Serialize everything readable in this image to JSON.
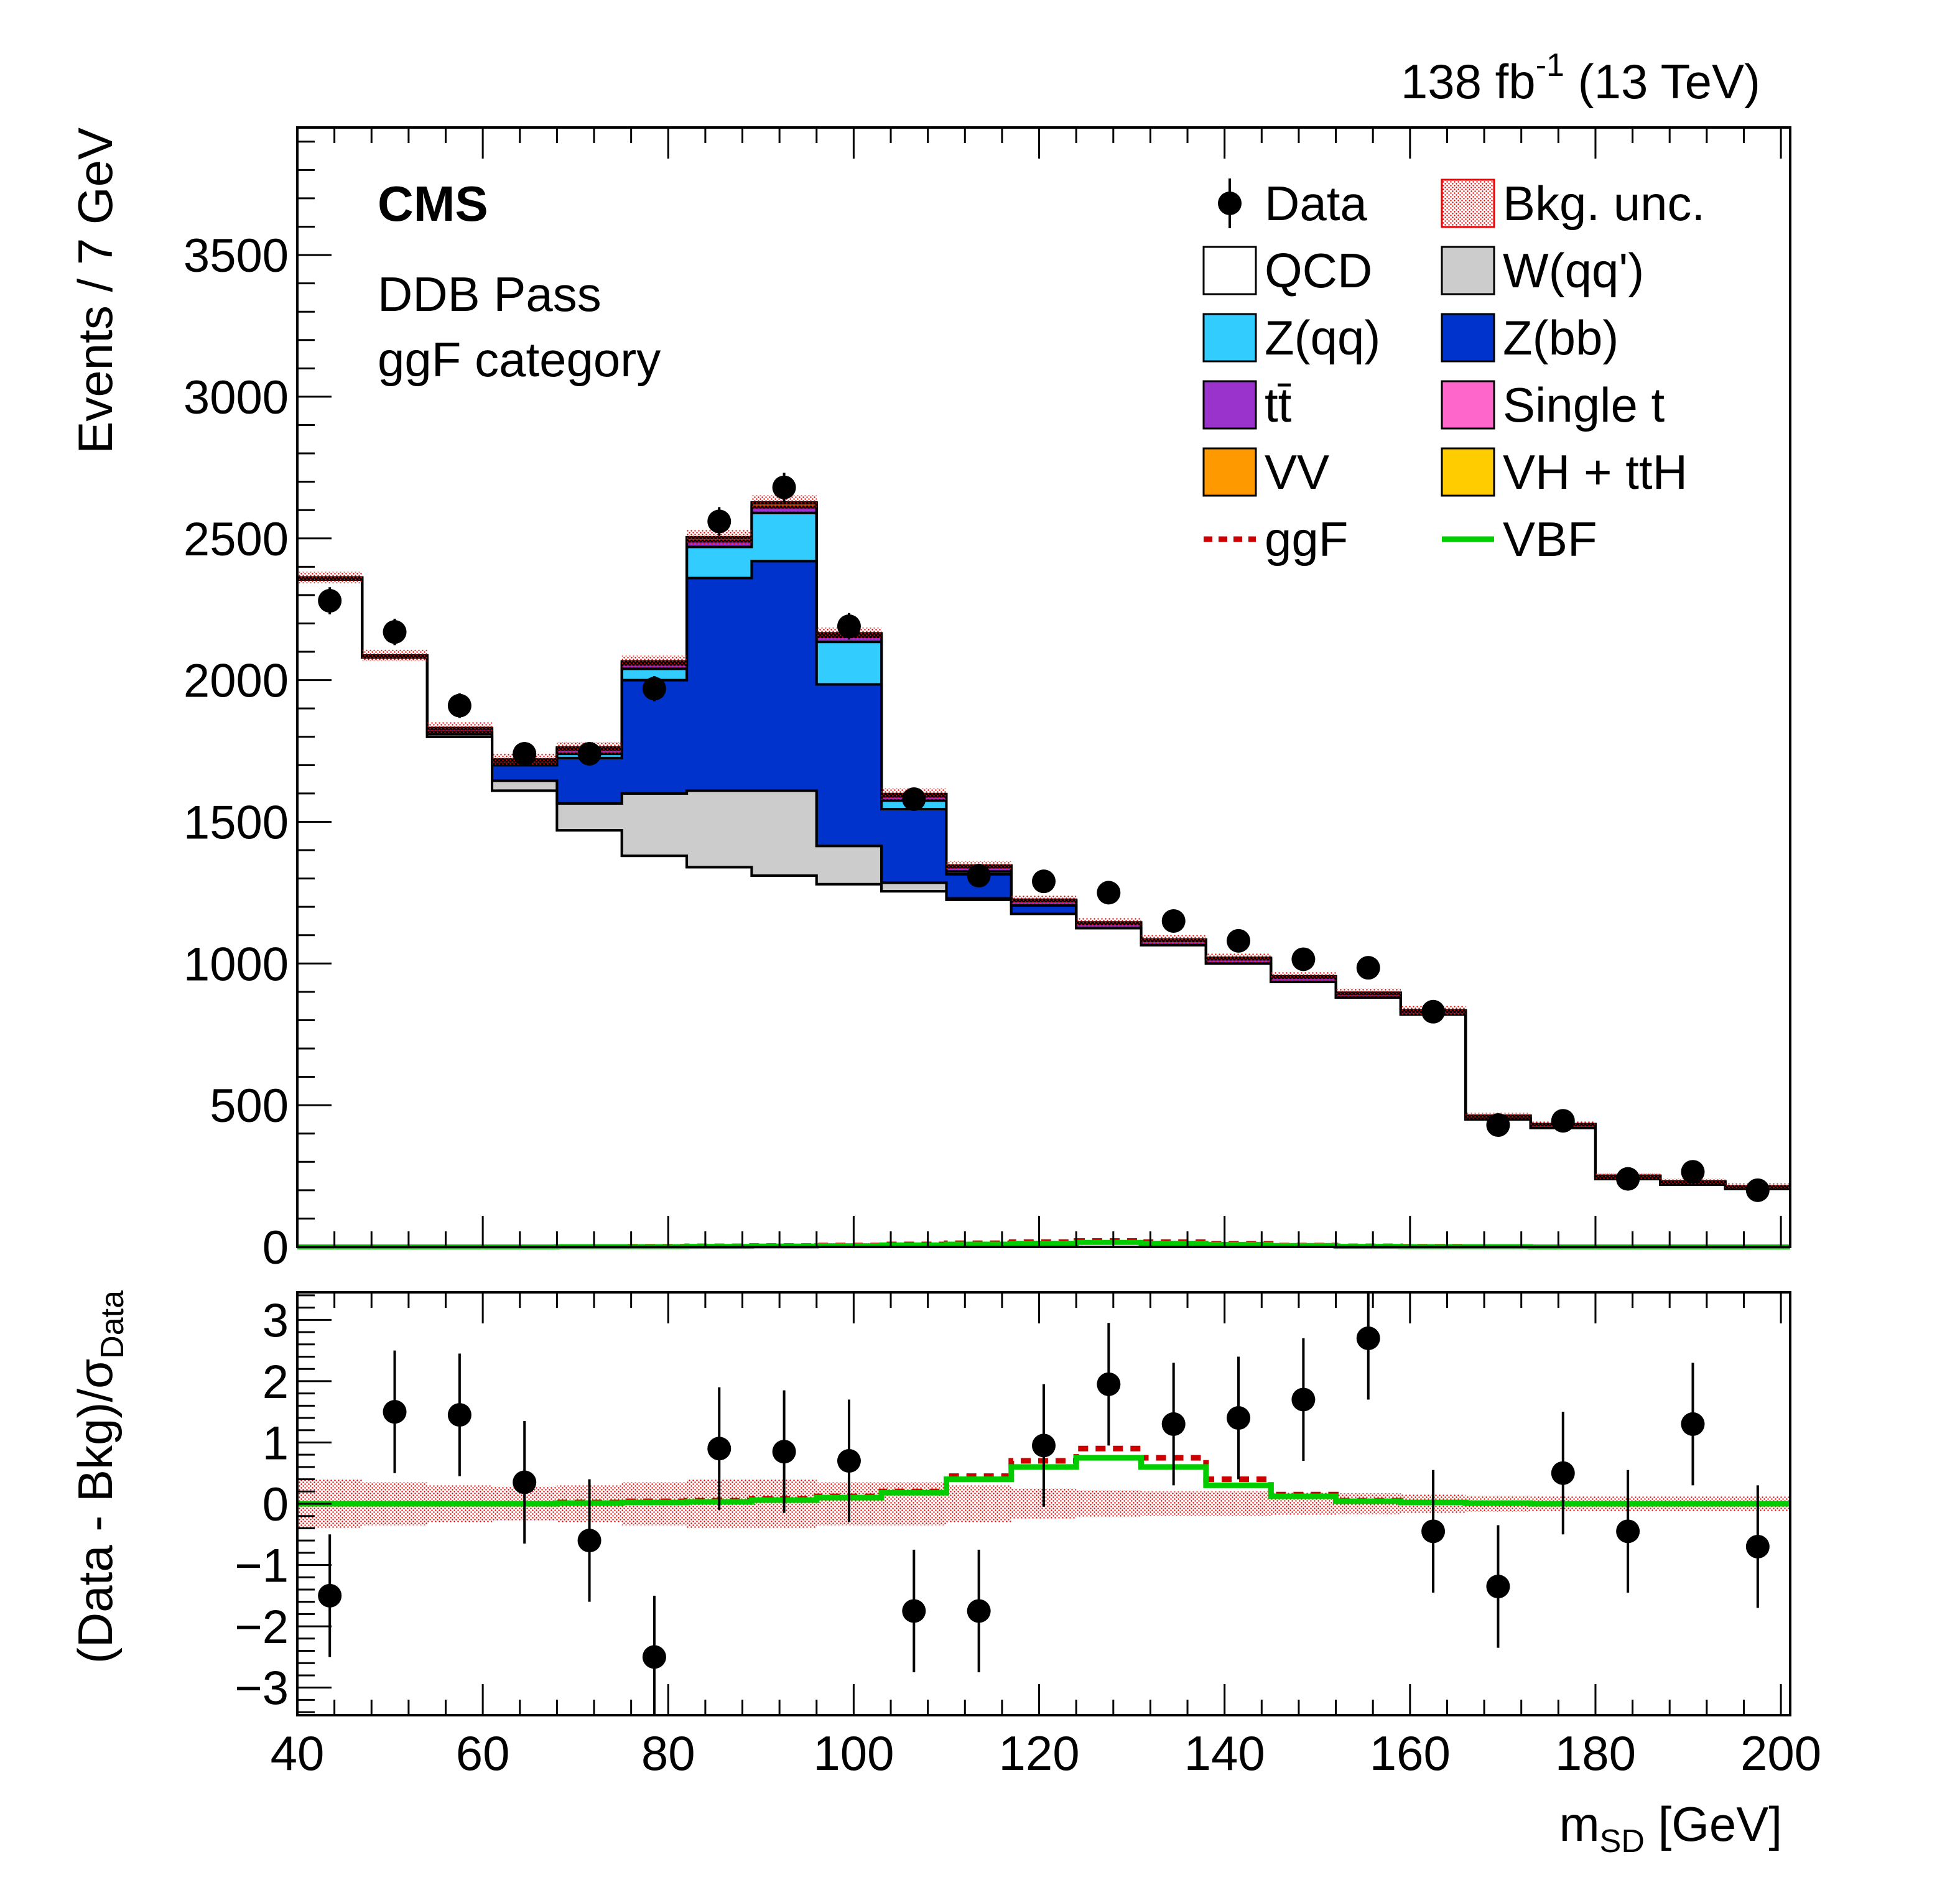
{
  "lumi": {
    "value": "138 fb",
    "sup": "-1",
    "energy": "(13 TeV)"
  },
  "cms_label": "CMS",
  "region": [
    "DDB Pass",
    "ggF category"
  ],
  "chart_data": [
    {
      "type": "stacked-histogram",
      "ylabel": "Events / 7 GeV",
      "ylim": [
        0,
        3950
      ],
      "xlim": [
        40,
        201
      ],
      "yticks": [
        "0",
        "500",
        "1000",
        "1500",
        "2000",
        "2500",
        "3000",
        "3500"
      ],
      "bin_edges": [
        40,
        47,
        54,
        61,
        68,
        75,
        82,
        89,
        96,
        103,
        110,
        117,
        124,
        131,
        138,
        145,
        152,
        159,
        166,
        173,
        180,
        187,
        194,
        201
      ],
      "series": [
        {
          "name": "QCD",
          "color": "#ffffff",
          "values": [
            2355,
            2080,
            1800,
            1610,
            1470,
            1380,
            1340,
            1310,
            1280,
            1255,
            1225,
            1175,
            1125,
            1065,
            1000,
            935,
            880,
            820,
            450,
            420,
            240,
            220,
            205
          ]
        },
        {
          "name": "W(qq')",
          "color": "#cccccc",
          "values": [
            0,
            0,
            10,
            35,
            95,
            220,
            270,
            300,
            135,
            30,
            5,
            0,
            0,
            0,
            0,
            0,
            0,
            0,
            0,
            0,
            0,
            0,
            0
          ]
        },
        {
          "name": "Z(bb)",
          "color": "#0033cc",
          "values": [
            0,
            0,
            5,
            55,
            160,
            400,
            750,
            810,
            570,
            260,
            85,
            30,
            0,
            0,
            0,
            0,
            0,
            0,
            0,
            0,
            0,
            0,
            0
          ]
        },
        {
          "name": "Z(qq)",
          "color": "#33ccff",
          "values": [
            0,
            0,
            2,
            5,
            15,
            40,
            110,
            170,
            150,
            30,
            10,
            0,
            0,
            0,
            0,
            0,
            0,
            0,
            0,
            0,
            0,
            0,
            0
          ]
        },
        {
          "name": "tt̄",
          "color": "#9933cc",
          "values": [
            5,
            5,
            10,
            10,
            15,
            15,
            20,
            20,
            18,
            15,
            15,
            15,
            15,
            15,
            15,
            15,
            12,
            10,
            10,
            10,
            8,
            8,
            6
          ]
        },
        {
          "name": "Single t",
          "color": "#ff66cc",
          "values": [
            2,
            2,
            2,
            2,
            2,
            2,
            2,
            2,
            2,
            2,
            2,
            2,
            2,
            2,
            2,
            2,
            2,
            2,
            2,
            2,
            2,
            2,
            2
          ]
        },
        {
          "name": "VV",
          "color": "#ff9900",
          "values": [
            0,
            0,
            2,
            3,
            5,
            8,
            10,
            12,
            8,
            5,
            3,
            2,
            2,
            2,
            2,
            2,
            2,
            2,
            1,
            1,
            1,
            1,
            1
          ]
        },
        {
          "name": "VH + ttH",
          "color": "#ffcc00",
          "values": [
            0,
            0,
            0,
            0,
            0,
            1,
            2,
            3,
            2,
            1,
            1,
            1,
            1,
            1,
            1,
            1,
            1,
            1,
            0,
            0,
            0,
            0,
            0
          ]
        }
      ],
      "bkg_unc": [
        20,
        20,
        20,
        20,
        20,
        20,
        25,
        25,
        20,
        20,
        15,
        15,
        15,
        15,
        15,
        15,
        15,
        15,
        10,
        10,
        10,
        10,
        10
      ],
      "signals": [
        {
          "name": "ggF",
          "color": "#cc0000",
          "style": "dashed",
          "values": [
            0,
            0,
            0,
            0,
            1,
            2,
            3,
            4,
            6,
            10,
            14,
            18,
            22,
            18,
            12,
            6,
            3,
            2,
            1,
            0,
            0,
            0,
            0
          ]
        },
        {
          "name": "VBF",
          "color": "#00cc00",
          "style": "solid",
          "values": [
            0,
            0,
            0,
            0,
            1,
            1,
            2,
            3,
            4,
            7,
            10,
            13,
            16,
            13,
            9,
            5,
            2,
            1,
            1,
            0,
            0,
            0,
            0
          ]
        }
      ],
      "data": {
        "name": "Data",
        "x": [
          43.5,
          50.5,
          57.5,
          64.5,
          71.5,
          78.5,
          85.5,
          92.5,
          99.5,
          106.5,
          113.5,
          120.5,
          127.5,
          134.5,
          141.5,
          148.5,
          155.5,
          162.5,
          169.5,
          176.5,
          183.5,
          190.5,
          197.5
        ],
        "y": [
          2280,
          2170,
          1910,
          1740,
          1740,
          1970,
          2560,
          2680,
          2190,
          1580,
          1310,
          1290,
          1250,
          1150,
          1080,
          1015,
          985,
          830,
          430,
          445,
          240,
          265,
          200
        ]
      },
      "legend": {
        "placement": "top-right",
        "entries": [
          {
            "label": "Data",
            "kind": "marker"
          },
          {
            "label": "Bkg. unc.",
            "kind": "hatch",
            "color": "#ee0000"
          },
          {
            "label": "QCD",
            "kind": "box",
            "color": "#ffffff"
          },
          {
            "label": "W(qq')",
            "kind": "box",
            "color": "#cccccc"
          },
          {
            "label": "Z(qq)",
            "kind": "box",
            "color": "#33ccff"
          },
          {
            "label": "Z(bb)",
            "kind": "box",
            "color": "#0033cc"
          },
          {
            "label": "tt̄",
            "kind": "box",
            "color": "#9933cc"
          },
          {
            "label": "Single t",
            "kind": "box",
            "color": "#ff66cc"
          },
          {
            "label": "VV",
            "kind": "box",
            "color": "#ff9900"
          },
          {
            "label": "VH + ttH",
            "kind": "box",
            "color": "#ffcc00"
          },
          {
            "label": "ggF",
            "kind": "dashed",
            "color": "#cc0000"
          },
          {
            "label": "VBF",
            "kind": "line",
            "color": "#00cc00"
          }
        ]
      }
    },
    {
      "type": "scatter-with-errors",
      "ylabel": "(Data - Bkg)/σ",
      "ylabel_sub": "Data",
      "ylim": [
        -3.45,
        3.45
      ],
      "xlim": [
        40,
        201
      ],
      "yticks": [
        "−3",
        "−2",
        "−1",
        "0",
        "1",
        "2",
        "3"
      ],
      "xticks": [
        "40",
        "60",
        "80",
        "100",
        "120",
        "140",
        "160",
        "180",
        "200"
      ],
      "xlabel": "m",
      "xlabel_sub": "SD",
      "xlabel_unit": "[GeV]",
      "x": [
        43.5,
        50.5,
        57.5,
        64.5,
        71.5,
        78.5,
        85.5,
        92.5,
        99.5,
        106.5,
        113.5,
        120.5,
        127.5,
        134.5,
        141.5,
        148.5,
        155.5,
        162.5,
        169.5,
        176.5,
        183.5,
        190.5,
        197.5
      ],
      "y": [
        -1.5,
        1.5,
        1.45,
        0.35,
        -0.6,
        -2.5,
        0.9,
        0.85,
        0.7,
        -1.75,
        -1.75,
        0.95,
        1.95,
        1.3,
        1.4,
        1.7,
        2.7,
        -0.45,
        -1.35,
        0.5,
        -0.45,
        1.3,
        -0.7
      ],
      "yerr": 1.0,
      "unc_band": [
        0.4,
        0.35,
        0.3,
        0.28,
        0.3,
        0.35,
        0.4,
        0.4,
        0.35,
        0.35,
        0.3,
        0.25,
        0.22,
        0.2,
        0.2,
        0.18,
        0.17,
        0.15,
        0.13,
        0.12,
        0.12,
        0.12,
        0.12
      ],
      "ggF_ratio": [
        0,
        0,
        0,
        0,
        0.02,
        0.04,
        0.05,
        0.08,
        0.12,
        0.2,
        0.45,
        0.7,
        0.9,
        0.75,
        0.4,
        0.15,
        0.05,
        0.02,
        0.01,
        0,
        0,
        0,
        0
      ],
      "VBF_ratio": [
        0,
        0,
        0,
        0,
        0.01,
        0.02,
        0.03,
        0.06,
        0.1,
        0.18,
        0.4,
        0.6,
        0.75,
        0.6,
        0.3,
        0.12,
        0.04,
        0.02,
        0.01,
        0,
        0,
        0,
        0
      ]
    }
  ]
}
